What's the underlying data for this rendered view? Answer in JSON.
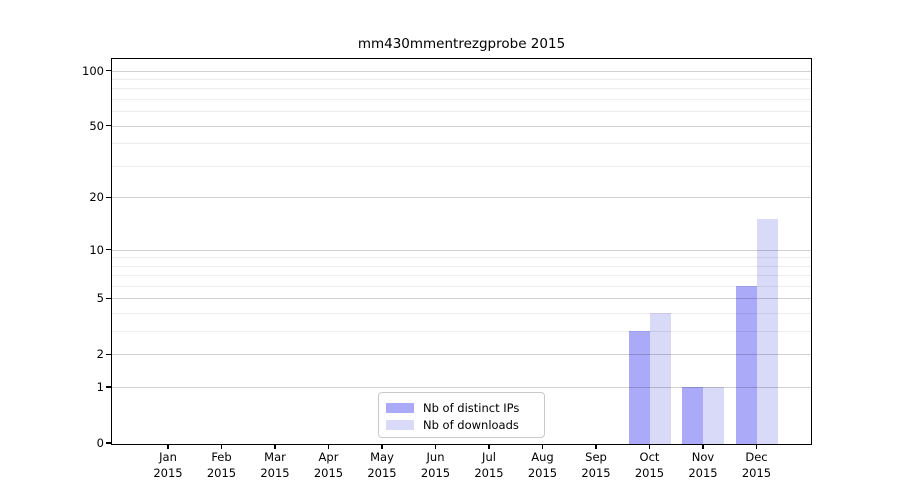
{
  "chart_data": {
    "type": "bar",
    "title": "mm430mmentrezgprobe 2015",
    "categories": [
      "Jan",
      "Feb",
      "Mar",
      "Apr",
      "May",
      "Jun",
      "Jul",
      "Aug",
      "Sep",
      "Oct",
      "Nov",
      "Dec"
    ],
    "year": "2015",
    "series": [
      {
        "name": "Nb of distinct IPs",
        "color": "#aaaaf8",
        "values": [
          0,
          0,
          0,
          0,
          0,
          0,
          0,
          0,
          0,
          3,
          1,
          6
        ]
      },
      {
        "name": "Nb of downloads",
        "color": "#d9d9f8",
        "values": [
          0,
          0,
          0,
          0,
          0,
          0,
          0,
          0,
          0,
          4,
          1,
          15
        ]
      }
    ],
    "xlabel": "",
    "ylabel": "",
    "yscale": "log10(1+x)",
    "yticks": [
      0,
      1,
      2,
      5,
      10,
      20,
      50,
      100
    ],
    "grid_major": [
      1,
      2,
      5,
      10,
      20,
      50,
      100
    ],
    "grid_minor": [
      3,
      4,
      6,
      7,
      8,
      9,
      30,
      40,
      60,
      70,
      80,
      90
    ],
    "ylim": [
      0,
      110
    ],
    "grid": "on",
    "legend_position": "lower center",
    "frame_color": "#000000",
    "background_color": "#ffffff"
  }
}
